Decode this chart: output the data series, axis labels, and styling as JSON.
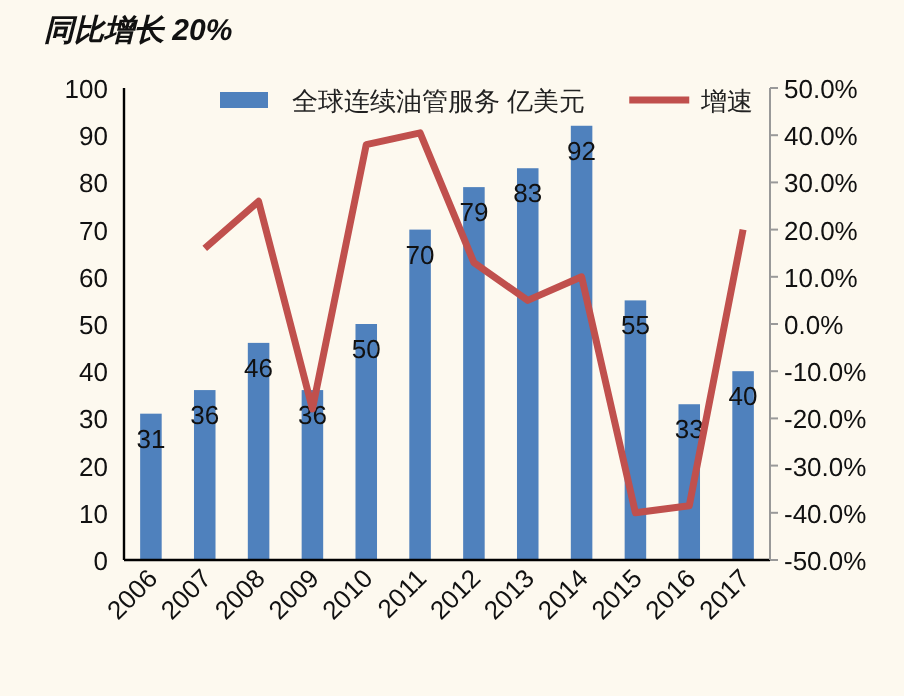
{
  "chart_data": {
    "type": "bar",
    "title": "同比增长 20%",
    "categories": [
      "2006",
      "2007",
      "2008",
      "2009",
      "2010",
      "2011",
      "2012",
      "2013",
      "2014",
      "2015",
      "2016",
      "2017"
    ],
    "series": [
      {
        "name": "全球连续油管服务 亿美元",
        "color": "#4f81bd",
        "values": [
          31,
          36,
          46,
          36,
          50,
          70,
          79,
          83,
          92,
          55,
          33,
          40
        ],
        "value_labels": [
          "31",
          "36",
          "46",
          "36",
          "50",
          "70",
          "79",
          "83",
          "92",
          "55",
          "33",
          "40"
        ]
      },
      {
        "name": "增速",
        "type": "line",
        "axis": "y2",
        "color": "#c0504d",
        "values": [
          null,
          16,
          26,
          -18,
          38,
          40.5,
          13,
          5,
          10,
          -40,
          -38.5,
          20
        ]
      }
    ],
    "ylim": [
      0,
      100
    ],
    "yticks": [
      0,
      10,
      20,
      30,
      40,
      50,
      60,
      70,
      80,
      90,
      100
    ],
    "y2lim": [
      -50,
      50
    ],
    "y2ticks": [
      {
        "value": -50,
        "label": "-50.0%"
      },
      {
        "value": -40,
        "label": "-40.0%"
      },
      {
        "value": -30,
        "label": "-30.0%"
      },
      {
        "value": -20,
        "label": "-20.0%"
      },
      {
        "value": -10,
        "label": "-10.0%"
      },
      {
        "value": 0,
        "label": "0.0%"
      },
      {
        "value": 10,
        "label": "10.0%"
      },
      {
        "value": 20,
        "label": "20.0%"
      },
      {
        "value": 30,
        "label": "30.0%"
      },
      {
        "value": 40,
        "label": "40.0%"
      },
      {
        "value": 50,
        "label": "50.0%"
      }
    ],
    "legend": "top",
    "grid": false
  }
}
